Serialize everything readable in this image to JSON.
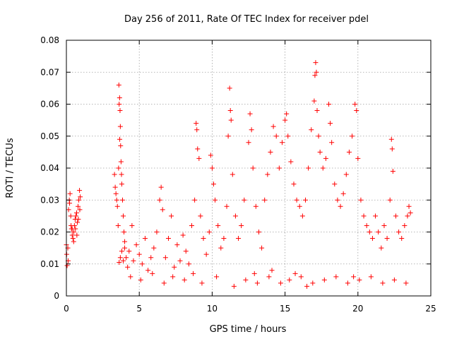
{
  "chart_data": {
    "type": "scatter",
    "title": "Day 256 of 2011, Rate Of TEC Index for receiver pdel",
    "xlabel": "GPS time / hours",
    "ylabel": "ROTI / TECUs",
    "xlim": [
      0,
      25
    ],
    "ylim": [
      0,
      0.08
    ],
    "x_ticks": [
      "0",
      "5",
      "10",
      "15",
      "20",
      "25"
    ],
    "y_ticks": [
      "0",
      "0.01",
      "0.02",
      "0.03",
      "0.04",
      "0.05",
      "0.06",
      "0.07",
      "0.08"
    ],
    "grid": true,
    "marker": "+",
    "colors": {
      "series": "#ff0000"
    },
    "series": [
      {
        "points": [
          [
            0.0,
            0.016
          ],
          [
            0.05,
            0.0095
          ],
          [
            0.1,
            0.015
          ],
          [
            0.15,
            0.027
          ],
          [
            0.2,
            0.03
          ],
          [
            0.25,
            0.032
          ],
          [
            0.3,
            0.025
          ],
          [
            0.35,
            0.021
          ],
          [
            0.4,
            0.019
          ],
          [
            0.45,
            0.018
          ],
          [
            0.5,
            0.02
          ],
          [
            0.55,
            0.022
          ],
          [
            0.6,
            0.024
          ],
          [
            0.65,
            0.025
          ],
          [
            0.7,
            0.026
          ],
          [
            0.75,
            0.023
          ],
          [
            0.8,
            0.028
          ],
          [
            0.85,
            0.03
          ],
          [
            0.9,
            0.033
          ],
          [
            0.95,
            0.031
          ],
          [
            0.02,
            0.013
          ],
          [
            0.12,
            0.011
          ],
          [
            0.22,
            0.029
          ],
          [
            0.32,
            0.022
          ],
          [
            0.62,
            0.021
          ],
          [
            0.72,
            0.019
          ],
          [
            0.82,
            0.024
          ],
          [
            0.92,
            0.027
          ],
          [
            0.5,
            0.017
          ],
          [
            0.4,
            0.021
          ],
          [
            3.3,
            0.038
          ],
          [
            3.35,
            0.034
          ],
          [
            3.4,
            0.032
          ],
          [
            3.45,
            0.03
          ],
          [
            3.5,
            0.028
          ],
          [
            3.55,
            0.022
          ],
          [
            3.6,
            0.066
          ],
          [
            3.62,
            0.06
          ],
          [
            3.65,
            0.062
          ],
          [
            3.68,
            0.058
          ],
          [
            3.7,
            0.053
          ],
          [
            3.72,
            0.047
          ],
          [
            3.75,
            0.042
          ],
          [
            3.78,
            0.038
          ],
          [
            3.8,
            0.035
          ],
          [
            3.85,
            0.03
          ],
          [
            3.9,
            0.025
          ],
          [
            3.95,
            0.02
          ],
          [
            4.0,
            0.017
          ],
          [
            3.62,
            0.0105
          ],
          [
            3.7,
            0.012
          ],
          [
            3.8,
            0.014
          ],
          [
            3.9,
            0.011
          ],
          [
            4.0,
            0.015
          ],
          [
            3.58,
            0.04
          ],
          [
            3.66,
            0.049
          ],
          [
            4.1,
            0.012
          ],
          [
            4.2,
            0.009
          ],
          [
            4.3,
            0.014
          ],
          [
            4.5,
            0.022
          ],
          [
            4.6,
            0.011
          ],
          [
            4.8,
            0.016
          ],
          [
            5.0,
            0.013
          ],
          [
            5.2,
            0.01
          ],
          [
            5.4,
            0.018
          ],
          [
            5.6,
            0.008
          ],
          [
            5.8,
            0.012
          ],
          [
            6.0,
            0.015
          ],
          [
            6.2,
            0.02
          ],
          [
            6.4,
            0.03
          ],
          [
            6.5,
            0.034
          ],
          [
            6.6,
            0.027
          ],
          [
            6.8,
            0.012
          ],
          [
            7.0,
            0.018
          ],
          [
            7.2,
            0.025
          ],
          [
            7.4,
            0.009
          ],
          [
            7.6,
            0.016
          ],
          [
            7.8,
            0.011
          ],
          [
            8.0,
            0.019
          ],
          [
            8.2,
            0.014
          ],
          [
            8.4,
            0.01
          ],
          [
            8.6,
            0.022
          ],
          [
            8.8,
            0.03
          ],
          [
            8.9,
            0.054
          ],
          [
            8.95,
            0.052
          ],
          [
            9.0,
            0.046
          ],
          [
            9.1,
            0.043
          ],
          [
            9.2,
            0.025
          ],
          [
            9.4,
            0.018
          ],
          [
            9.6,
            0.013
          ],
          [
            9.8,
            0.02
          ],
          [
            9.9,
            0.044
          ],
          [
            10.0,
            0.04
          ],
          [
            10.1,
            0.035
          ],
          [
            10.2,
            0.03
          ],
          [
            10.4,
            0.022
          ],
          [
            10.6,
            0.015
          ],
          [
            10.8,
            0.018
          ],
          [
            11.0,
            0.028
          ],
          [
            11.1,
            0.05
          ],
          [
            11.2,
            0.065
          ],
          [
            11.25,
            0.058
          ],
          [
            11.3,
            0.055
          ],
          [
            11.4,
            0.038
          ],
          [
            11.6,
            0.025
          ],
          [
            11.8,
            0.018
          ],
          [
            12.0,
            0.022
          ],
          [
            12.2,
            0.03
          ],
          [
            12.5,
            0.048
          ],
          [
            12.6,
            0.057
          ],
          [
            12.7,
            0.052
          ],
          [
            12.8,
            0.04
          ],
          [
            13.0,
            0.028
          ],
          [
            13.2,
            0.02
          ],
          [
            13.4,
            0.015
          ],
          [
            13.6,
            0.03
          ],
          [
            13.8,
            0.038
          ],
          [
            14.0,
            0.045
          ],
          [
            14.2,
            0.053
          ],
          [
            14.4,
            0.05
          ],
          [
            14.6,
            0.04
          ],
          [
            14.8,
            0.048
          ],
          [
            15.0,
            0.055
          ],
          [
            15.1,
            0.057
          ],
          [
            15.2,
            0.05
          ],
          [
            15.4,
            0.042
          ],
          [
            15.6,
            0.035
          ],
          [
            15.8,
            0.03
          ],
          [
            16.0,
            0.028
          ],
          [
            16.2,
            0.025
          ],
          [
            16.4,
            0.03
          ],
          [
            16.6,
            0.04
          ],
          [
            16.8,
            0.052
          ],
          [
            17.0,
            0.061
          ],
          [
            17.05,
            0.069
          ],
          [
            17.1,
            0.073
          ],
          [
            17.15,
            0.07
          ],
          [
            17.2,
            0.058
          ],
          [
            17.3,
            0.05
          ],
          [
            17.4,
            0.045
          ],
          [
            17.6,
            0.04
          ],
          [
            17.8,
            0.043
          ],
          [
            18.0,
            0.06
          ],
          [
            18.1,
            0.054
          ],
          [
            18.2,
            0.048
          ],
          [
            18.4,
            0.035
          ],
          [
            18.6,
            0.03
          ],
          [
            18.8,
            0.028
          ],
          [
            19.0,
            0.032
          ],
          [
            19.2,
            0.038
          ],
          [
            19.4,
            0.045
          ],
          [
            19.6,
            0.05
          ],
          [
            19.8,
            0.06
          ],
          [
            19.9,
            0.058
          ],
          [
            20.0,
            0.043
          ],
          [
            20.2,
            0.03
          ],
          [
            20.4,
            0.025
          ],
          [
            20.6,
            0.022
          ],
          [
            20.8,
            0.02
          ],
          [
            21.0,
            0.018
          ],
          [
            21.2,
            0.025
          ],
          [
            21.4,
            0.02
          ],
          [
            21.6,
            0.015
          ],
          [
            21.8,
            0.022
          ],
          [
            22.0,
            0.018
          ],
          [
            22.2,
            0.03
          ],
          [
            22.3,
            0.049
          ],
          [
            22.35,
            0.046
          ],
          [
            22.4,
            0.039
          ],
          [
            22.6,
            0.025
          ],
          [
            22.8,
            0.02
          ],
          [
            23.0,
            0.018
          ],
          [
            23.2,
            0.022
          ],
          [
            23.4,
            0.025
          ],
          [
            23.5,
            0.028
          ],
          [
            23.6,
            0.026
          ],
          [
            4.4,
            0.006
          ],
          [
            5.1,
            0.005
          ],
          [
            5.9,
            0.007
          ],
          [
            6.7,
            0.004
          ],
          [
            7.3,
            0.006
          ],
          [
            8.1,
            0.005
          ],
          [
            8.7,
            0.007
          ],
          [
            9.3,
            0.004
          ],
          [
            10.3,
            0.006
          ],
          [
            11.5,
            0.003
          ],
          [
            12.3,
            0.005
          ],
          [
            13.1,
            0.004
          ],
          [
            13.9,
            0.006
          ],
          [
            14.7,
            0.004
          ],
          [
            15.3,
            0.005
          ],
          [
            16.1,
            0.006
          ],
          [
            16.9,
            0.004
          ],
          [
            17.7,
            0.005
          ],
          [
            18.5,
            0.006
          ],
          [
            19.3,
            0.004
          ],
          [
            20.1,
            0.005
          ],
          [
            20.9,
            0.006
          ],
          [
            21.7,
            0.004
          ],
          [
            22.5,
            0.005
          ],
          [
            23.3,
            0.004
          ],
          [
            12.9,
            0.007
          ],
          [
            14.1,
            0.008
          ],
          [
            15.7,
            0.007
          ],
          [
            16.5,
            0.003
          ],
          [
            19.7,
            0.006
          ]
        ]
      }
    ]
  }
}
